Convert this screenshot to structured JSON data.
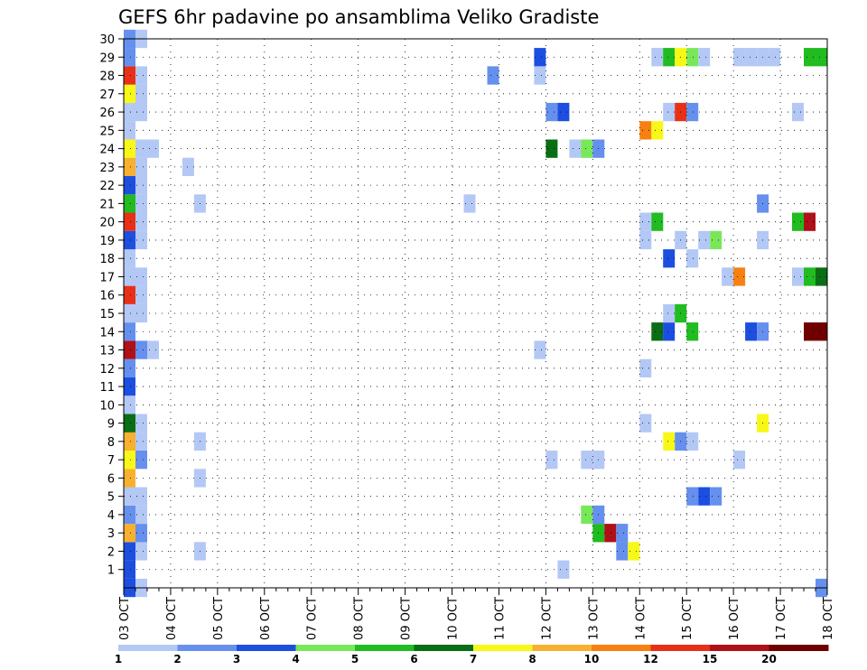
{
  "chart_data": {
    "type": "heatmap",
    "title": "GEFS 6hr padavine po ansamblima Veliko Gradiste",
    "x_tick_labels": [
      "03 OCT",
      "04 OCT",
      "05 OCT",
      "06 OCT",
      "07 OCT",
      "08 OCT",
      "09 OCT",
      "10 OCT",
      "11 OCT",
      "12 OCT",
      "13 OCT",
      "14 OCT",
      "15 OCT",
      "16 OCT",
      "17 OCT",
      "18 OCT"
    ],
    "y_tick_labels": [
      "1",
      "2",
      "3",
      "4",
      "5",
      "6",
      "7",
      "8",
      "9",
      "10",
      "11",
      "12",
      "13",
      "14",
      "15",
      "16",
      "17",
      "18",
      "19",
      "20",
      "21",
      "22",
      "23",
      "24",
      "25",
      "26",
      "27",
      "28",
      "29",
      "30"
    ],
    "x_range": [
      0,
      60
    ],
    "y_range": [
      0,
      30
    ],
    "grid": true,
    "colorbar": {
      "labels": [
        "1",
        "2",
        "3",
        "4",
        "5",
        "6",
        "7",
        "8",
        "10",
        "12",
        "15",
        "20"
      ],
      "colors": [
        "#b4c8f6",
        "#6690ee",
        "#1c4fe0",
        "#78e85a",
        "#20bc20",
        "#0a6e14",
        "#f8f818",
        "#f8b030",
        "#f88010",
        "#e83018",
        "#b01018",
        "#700000"
      ]
    },
    "cell_columns": "x_step (6-hourly, 0 = 03 OCT 00z), member, class (index into colorbar.colors, 1-based)",
    "cells": [
      [
        0,
        0,
        3
      ],
      [
        0,
        1,
        3
      ],
      [
        0,
        2,
        3
      ],
      [
        0,
        3,
        8
      ],
      [
        0,
        4,
        2
      ],
      [
        0,
        5,
        1
      ],
      [
        0,
        6,
        8
      ],
      [
        0,
        7,
        7
      ],
      [
        0,
        8,
        8
      ],
      [
        0,
        9,
        6
      ],
      [
        0,
        10,
        1
      ],
      [
        0,
        11,
        3
      ],
      [
        0,
        12,
        2
      ],
      [
        0,
        13,
        11
      ],
      [
        0,
        14,
        2
      ],
      [
        0,
        15,
        1
      ],
      [
        0,
        16,
        10
      ],
      [
        0,
        17,
        1
      ],
      [
        0,
        18,
        1
      ],
      [
        0,
        19,
        3
      ],
      [
        0,
        20,
        10
      ],
      [
        0,
        21,
        5
      ],
      [
        0,
        22,
        3
      ],
      [
        0,
        23,
        8
      ],
      [
        0,
        24,
        7
      ],
      [
        0,
        25,
        1
      ],
      [
        0,
        26,
        1
      ],
      [
        0,
        27,
        7
      ],
      [
        0,
        28,
        10
      ],
      [
        0,
        29,
        2
      ],
      [
        0,
        30,
        2
      ],
      [
        1,
        0,
        1
      ],
      [
        1,
        2,
        1
      ],
      [
        1,
        3,
        2
      ],
      [
        1,
        4,
        1
      ],
      [
        1,
        5,
        1
      ],
      [
        1,
        7,
        2
      ],
      [
        1,
        8,
        1
      ],
      [
        1,
        9,
        1
      ],
      [
        1,
        13,
        2
      ],
      [
        1,
        15,
        1
      ],
      [
        1,
        16,
        1
      ],
      [
        1,
        17,
        1
      ],
      [
        1,
        19,
        1
      ],
      [
        1,
        20,
        1
      ],
      [
        1,
        21,
        1
      ],
      [
        1,
        22,
        1
      ],
      [
        1,
        23,
        1
      ],
      [
        1,
        24,
        1
      ],
      [
        1,
        26,
        1
      ],
      [
        1,
        27,
        1
      ],
      [
        1,
        28,
        1
      ],
      [
        1,
        30,
        1
      ],
      [
        2,
        13,
        1
      ],
      [
        2,
        24,
        1
      ],
      [
        5,
        23,
        1
      ],
      [
        6,
        2,
        1
      ],
      [
        6,
        6,
        1
      ],
      [
        6,
        8,
        1
      ],
      [
        6,
        21,
        1
      ],
      [
        29,
        21,
        1
      ],
      [
        31,
        28,
        2
      ],
      [
        35,
        13,
        1
      ],
      [
        35,
        28,
        1
      ],
      [
        35,
        29,
        3
      ],
      [
        36,
        7,
        1
      ],
      [
        36,
        24,
        6
      ],
      [
        36,
        26,
        2
      ],
      [
        37,
        26,
        3
      ],
      [
        37,
        1,
        1
      ],
      [
        38,
        24,
        1
      ],
      [
        39,
        4,
        4
      ],
      [
        39,
        7,
        1
      ],
      [
        39,
        24,
        4
      ],
      [
        40,
        3,
        5
      ],
      [
        40,
        4,
        2
      ],
      [
        40,
        7,
        1
      ],
      [
        40,
        24,
        2
      ],
      [
        41,
        3,
        11
      ],
      [
        42,
        2,
        2
      ],
      [
        42,
        3,
        2
      ],
      [
        43,
        2,
        7
      ],
      [
        44,
        9,
        1
      ],
      [
        44,
        12,
        1
      ],
      [
        44,
        19,
        1
      ],
      [
        44,
        20,
        1
      ],
      [
        44,
        25,
        9
      ],
      [
        45,
        14,
        6
      ],
      [
        45,
        20,
        5
      ],
      [
        45,
        25,
        7
      ],
      [
        45,
        29,
        1
      ],
      [
        46,
        8,
        7
      ],
      [
        46,
        14,
        3
      ],
      [
        46,
        15,
        1
      ],
      [
        46,
        18,
        3
      ],
      [
        46,
        26,
        1
      ],
      [
        46,
        29,
        5
      ],
      [
        47,
        8,
        2
      ],
      [
        47,
        15,
        5
      ],
      [
        47,
        19,
        1
      ],
      [
        47,
        26,
        10
      ],
      [
        47,
        29,
        7
      ],
      [
        48,
        5,
        2
      ],
      [
        48,
        8,
        1
      ],
      [
        48,
        14,
        5
      ],
      [
        48,
        18,
        1
      ],
      [
        48,
        26,
        2
      ],
      [
        48,
        29,
        4
      ],
      [
        49,
        5,
        3
      ],
      [
        49,
        19,
        1
      ],
      [
        49,
        29,
        1
      ],
      [
        50,
        5,
        2
      ],
      [
        50,
        19,
        4
      ],
      [
        51,
        17,
        1
      ],
      [
        52,
        7,
        1
      ],
      [
        52,
        17,
        9
      ],
      [
        52,
        29,
        1
      ],
      [
        53,
        14,
        3
      ],
      [
        53,
        29,
        1
      ],
      [
        54,
        9,
        7
      ],
      [
        54,
        14,
        2
      ],
      [
        54,
        19,
        1
      ],
      [
        54,
        21,
        2
      ],
      [
        54,
        29,
        1
      ],
      [
        55,
        29,
        1
      ],
      [
        57,
        17,
        1
      ],
      [
        57,
        20,
        5
      ],
      [
        57,
        26,
        1
      ],
      [
        58,
        14,
        12
      ],
      [
        58,
        17,
        5
      ],
      [
        58,
        20,
        11
      ],
      [
        58,
        29,
        5
      ],
      [
        59,
        14,
        12
      ],
      [
        59,
        17,
        6
      ],
      [
        59,
        29,
        5
      ],
      [
        59,
        0,
        2
      ]
    ]
  }
}
